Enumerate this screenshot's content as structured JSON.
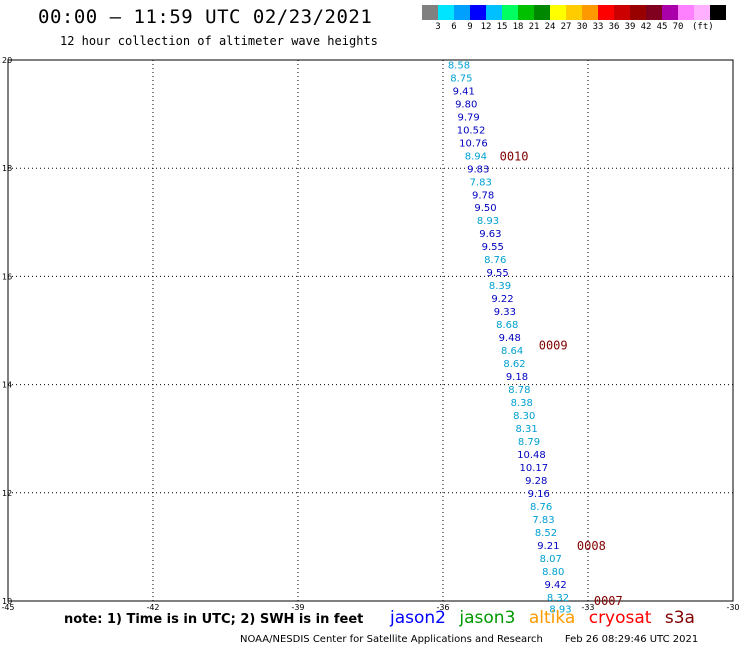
{
  "header": {
    "title": "00:00 – 11:59 UTC 02/23/2021",
    "subtitle": "12 hour collection of altimeter wave heights"
  },
  "colorbar": {
    "colors": [
      "#808080",
      "#00e5ff",
      "#00a0ff",
      "#0000ff",
      "#00c0ff",
      "#00ff60",
      "#00c000",
      "#008800",
      "#ffff00",
      "#ffcc00",
      "#ff9900",
      "#ff0000",
      "#cc0000",
      "#990000",
      "#800020",
      "#aa00aa",
      "#ff80ff",
      "#ffb0ff",
      "#000000"
    ],
    "labels": [
      "3",
      "6",
      "9",
      "12",
      "15",
      "18",
      "21",
      "24",
      "27",
      "30",
      "33",
      "36",
      "39",
      "42",
      "45",
      "70",
      "(ft)"
    ]
  },
  "map": {
    "lon_range": [
      -45,
      -30
    ],
    "lat_range": [
      10,
      20
    ],
    "lon_ticks": [
      "-45",
      "-42",
      "-39",
      "-36",
      "-33",
      "-30"
    ],
    "lat_ticks": [
      "20",
      "18",
      "16",
      "14",
      "12",
      "10"
    ],
    "lon_tick_values": [
      -45,
      -42,
      -39,
      -36,
      -33,
      -30
    ],
    "lat_tick_values": [
      20,
      18,
      16,
      14,
      12,
      10
    ],
    "grid_lon": [
      -42,
      -39,
      -36,
      -33
    ],
    "grid_lat": [
      18,
      16,
      14,
      12
    ],
    "track_color_a": "#00a0d0",
    "track_color_b": "#0000c0",
    "time_label_color": "#800000",
    "points": [
      {
        "lat": 19.9,
        "lon": -35.67,
        "v": "8.58",
        "c": "a"
      },
      {
        "lat": 19.66,
        "lon": -35.62,
        "v": "8.75",
        "c": "a"
      },
      {
        "lat": 19.42,
        "lon": -35.57,
        "v": "9.41",
        "c": "b"
      },
      {
        "lat": 19.18,
        "lon": -35.52,
        "v": "9.80",
        "c": "b"
      },
      {
        "lat": 18.94,
        "lon": -35.47,
        "v": "9.79",
        "c": "b"
      },
      {
        "lat": 18.7,
        "lon": -35.42,
        "v": "10.52",
        "c": "b"
      },
      {
        "lat": 18.46,
        "lon": -35.37,
        "v": "10.76",
        "c": "b"
      },
      {
        "lat": 18.22,
        "lon": -35.32,
        "v": "8.94",
        "c": "a"
      },
      {
        "lat": 17.98,
        "lon": -35.27,
        "v": "9.83",
        "c": "b"
      },
      {
        "lat": 17.74,
        "lon": -35.22,
        "v": "7.83",
        "c": "a"
      },
      {
        "lat": 17.5,
        "lon": -35.17,
        "v": "9.78",
        "c": "b"
      },
      {
        "lat": 17.26,
        "lon": -35.12,
        "v": "9.50",
        "c": "b"
      },
      {
        "lat": 17.02,
        "lon": -35.07,
        "v": "8.93",
        "c": "a"
      },
      {
        "lat": 16.78,
        "lon": -35.02,
        "v": "9.63",
        "c": "b"
      },
      {
        "lat": 16.54,
        "lon": -34.97,
        "v": "9.55",
        "c": "b"
      },
      {
        "lat": 16.3,
        "lon": -34.92,
        "v": "8.76",
        "c": "a"
      },
      {
        "lat": 16.06,
        "lon": -34.87,
        "v": "9.55",
        "c": "b"
      },
      {
        "lat": 15.82,
        "lon": -34.82,
        "v": "8.39",
        "c": "a"
      },
      {
        "lat": 15.58,
        "lon": -34.77,
        "v": "9.22",
        "c": "b"
      },
      {
        "lat": 15.34,
        "lon": -34.72,
        "v": "9.33",
        "c": "b"
      },
      {
        "lat": 15.1,
        "lon": -34.67,
        "v": "8.68",
        "c": "a"
      },
      {
        "lat": 14.86,
        "lon": -34.62,
        "v": "9.48",
        "c": "b"
      },
      {
        "lat": 14.62,
        "lon": -34.57,
        "v": "8.64",
        "c": "a"
      },
      {
        "lat": 14.38,
        "lon": -34.52,
        "v": "8.62",
        "c": "a"
      },
      {
        "lat": 14.14,
        "lon": -34.47,
        "v": "9.18",
        "c": "b"
      },
      {
        "lat": 13.9,
        "lon": -34.42,
        "v": "8.78",
        "c": "a"
      },
      {
        "lat": 13.66,
        "lon": -34.37,
        "v": "8.38",
        "c": "a"
      },
      {
        "lat": 13.42,
        "lon": -34.32,
        "v": "8.30",
        "c": "a"
      },
      {
        "lat": 13.18,
        "lon": -34.27,
        "v": "8.31",
        "c": "a"
      },
      {
        "lat": 12.94,
        "lon": -34.22,
        "v": "8.79",
        "c": "a"
      },
      {
        "lat": 12.7,
        "lon": -34.17,
        "v": "10.48",
        "c": "b"
      },
      {
        "lat": 12.46,
        "lon": -34.12,
        "v": "10.17",
        "c": "b"
      },
      {
        "lat": 12.22,
        "lon": -34.07,
        "v": "9.28",
        "c": "b"
      },
      {
        "lat": 11.98,
        "lon": -34.02,
        "v": "9.16",
        "c": "b"
      },
      {
        "lat": 11.74,
        "lon": -33.97,
        "v": "8.76",
        "c": "a"
      },
      {
        "lat": 11.5,
        "lon": -33.92,
        "v": "7.83",
        "c": "a"
      },
      {
        "lat": 11.26,
        "lon": -33.87,
        "v": "8.52",
        "c": "a"
      },
      {
        "lat": 11.02,
        "lon": -33.82,
        "v": "9.21",
        "c": "b"
      },
      {
        "lat": 10.78,
        "lon": -33.77,
        "v": "8.07",
        "c": "a"
      },
      {
        "lat": 10.54,
        "lon": -33.72,
        "v": "8.80",
        "c": "a"
      },
      {
        "lat": 10.3,
        "lon": -33.67,
        "v": "9.42",
        "c": "b"
      },
      {
        "lat": 10.06,
        "lon": -33.62,
        "v": "8.32",
        "c": "a"
      },
      {
        "lat": 9.84,
        "lon": -33.57,
        "v": "8.93",
        "c": "a"
      }
    ],
    "time_labels": [
      {
        "lat": 18.22,
        "lon": -34.53,
        "v": "0010"
      },
      {
        "lat": 14.72,
        "lon": -33.72,
        "v": "0009"
      },
      {
        "lat": 11.02,
        "lon": -32.93,
        "v": "0008"
      },
      {
        "lat": 10.0,
        "lon": -32.58,
        "v": "0007"
      }
    ]
  },
  "note": "note:  1) Time is in UTC;  2) SWH is in feet",
  "legend": [
    {
      "name": "jason2",
      "color": "#0000ff"
    },
    {
      "name": "jason3",
      "color": "#009900"
    },
    {
      "name": "altika",
      "color": "#ff9900"
    },
    {
      "name": "cryosat",
      "color": "#ff0000"
    },
    {
      "name": "s3a",
      "color": "#800000"
    }
  ],
  "footer": {
    "center": "NOAA/NESDIS Center for Satellite Applications and Research",
    "timestamp": "Feb 26 08:29:46 UTC 2021"
  }
}
